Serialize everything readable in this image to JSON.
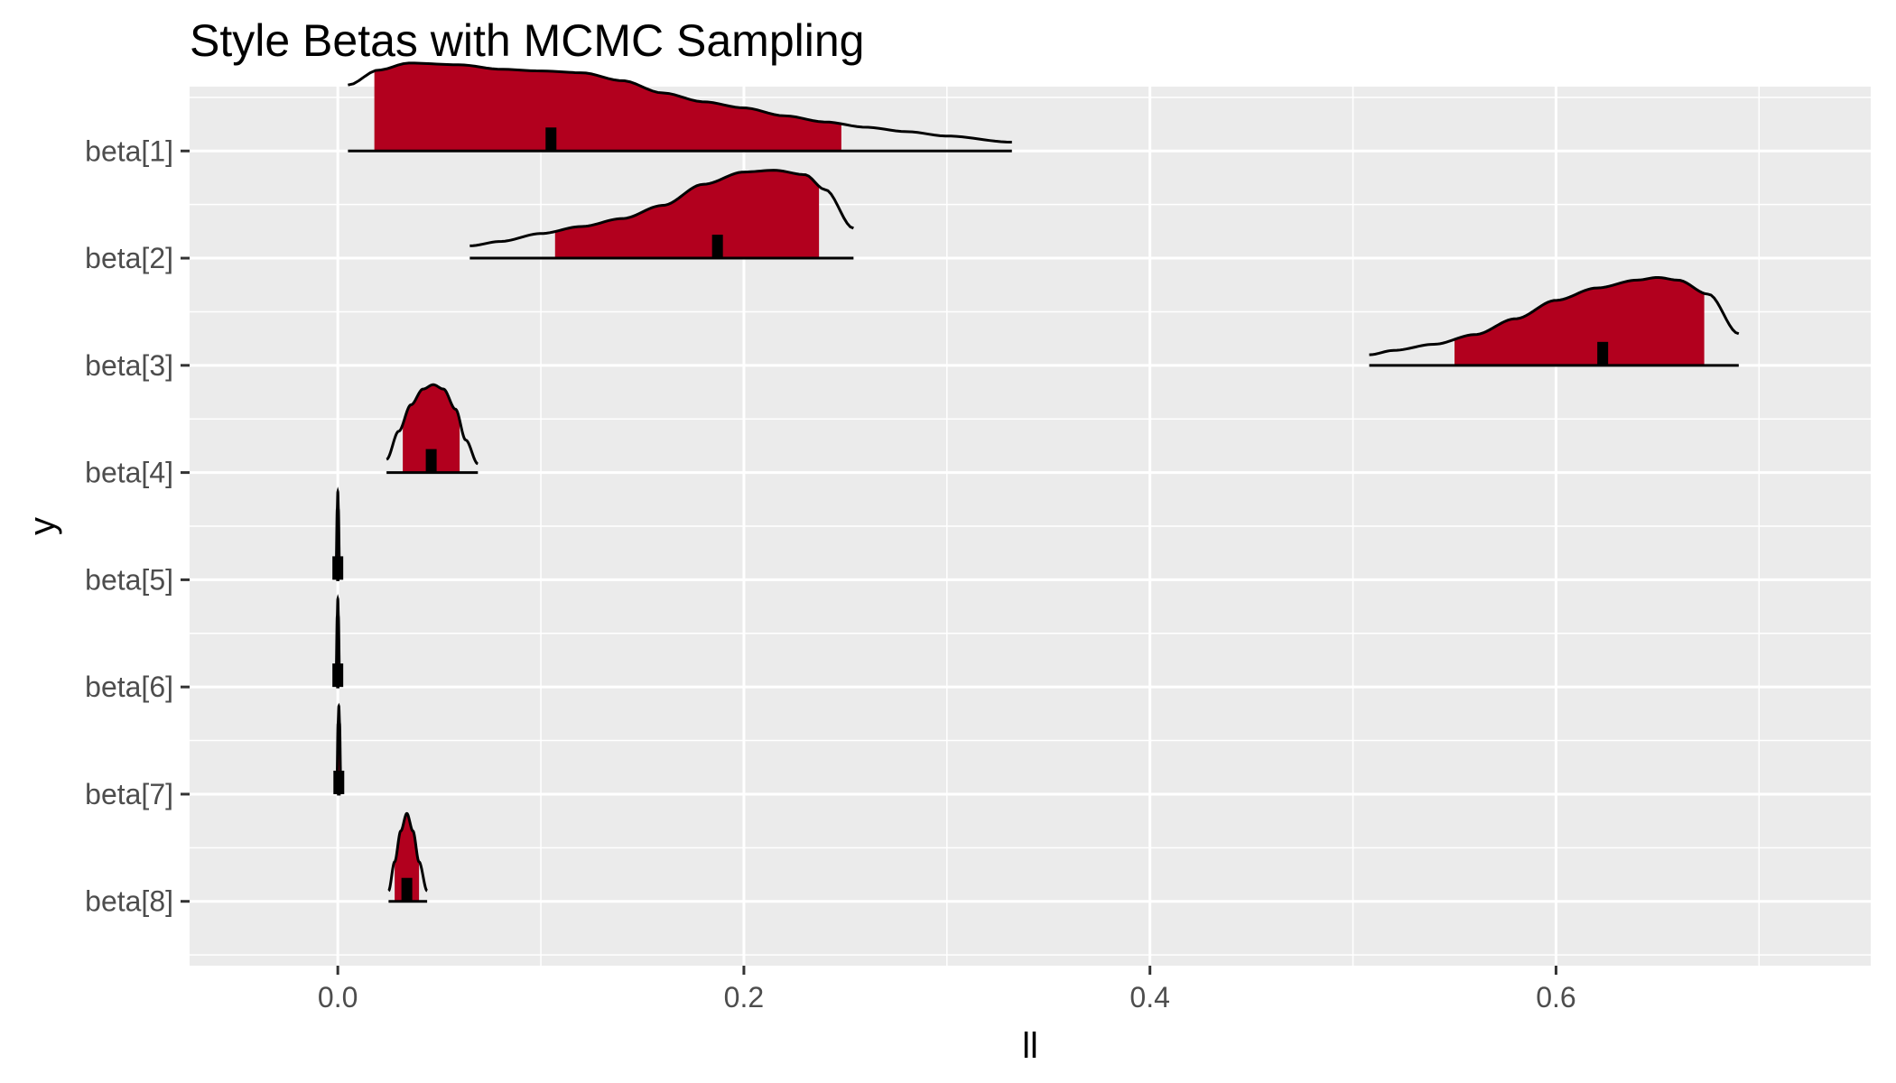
{
  "chart_data": {
    "type": "ridgeline",
    "title": "Style Betas with MCMC Sampling",
    "xlabel": "ll",
    "ylabel": "y",
    "xlim": [
      -0.073,
      0.755
    ],
    "x_ticks": [
      0.0,
      0.2,
      0.4,
      0.6
    ],
    "x_tick_labels": [
      "0.0",
      "0.2",
      "0.4",
      "0.6"
    ],
    "grid": true,
    "colors": {
      "panel": "#ebebeb",
      "grid": "#ffffff",
      "fill": "#b2001e",
      "outline": "#000000",
      "tick_text": "#4d4d4d"
    },
    "categories": [
      "beta[1]",
      "beta[2]",
      "beta[3]",
      "beta[4]",
      "beta[5]",
      "beta[6]",
      "beta[7]",
      "beta[8]"
    ],
    "series": [
      {
        "name": "beta[1]",
        "median": 0.105,
        "inner": [
          0.018,
          0.248
        ],
        "outer": [
          0.005,
          0.332
        ],
        "density": [
          [
            0.005,
            0.75
          ],
          [
            0.02,
            0.92
          ],
          [
            0.035,
            1.0
          ],
          [
            0.06,
            0.98
          ],
          [
            0.08,
            0.93
          ],
          [
            0.1,
            0.91
          ],
          [
            0.12,
            0.89
          ],
          [
            0.14,
            0.8
          ],
          [
            0.16,
            0.66
          ],
          [
            0.18,
            0.56
          ],
          [
            0.2,
            0.49
          ],
          [
            0.22,
            0.4
          ],
          [
            0.24,
            0.33
          ],
          [
            0.26,
            0.27
          ],
          [
            0.28,
            0.22
          ],
          [
            0.3,
            0.17
          ],
          [
            0.332,
            0.1
          ]
        ]
      },
      {
        "name": "beta[2]",
        "median": 0.187,
        "inner": [
          0.107,
          0.237
        ],
        "outer": [
          0.065,
          0.254
        ],
        "density": [
          [
            0.065,
            0.14
          ],
          [
            0.08,
            0.19
          ],
          [
            0.1,
            0.28
          ],
          [
            0.12,
            0.36
          ],
          [
            0.14,
            0.45
          ],
          [
            0.16,
            0.6
          ],
          [
            0.18,
            0.84
          ],
          [
            0.2,
            0.98
          ],
          [
            0.215,
            1.0
          ],
          [
            0.23,
            0.95
          ],
          [
            0.24,
            0.78
          ],
          [
            0.254,
            0.34
          ]
        ]
      },
      {
        "name": "beta[3]",
        "median": 0.623,
        "inner": [
          0.55,
          0.673
        ],
        "outer": [
          0.508,
          0.69
        ],
        "density": [
          [
            0.508,
            0.12
          ],
          [
            0.52,
            0.17
          ],
          [
            0.54,
            0.24
          ],
          [
            0.56,
            0.35
          ],
          [
            0.58,
            0.53
          ],
          [
            0.6,
            0.74
          ],
          [
            0.62,
            0.88
          ],
          [
            0.64,
            0.97
          ],
          [
            0.65,
            1.0
          ],
          [
            0.66,
            0.97
          ],
          [
            0.675,
            0.81
          ],
          [
            0.69,
            0.36
          ]
        ]
      },
      {
        "name": "beta[4]",
        "median": 0.046,
        "inner": [
          0.032,
          0.06
        ],
        "outer": [
          0.024,
          0.069
        ],
        "density": [
          [
            0.024,
            0.15
          ],
          [
            0.03,
            0.47
          ],
          [
            0.036,
            0.77
          ],
          [
            0.042,
            0.95
          ],
          [
            0.047,
            1.0
          ],
          [
            0.052,
            0.95
          ],
          [
            0.058,
            0.72
          ],
          [
            0.063,
            0.37
          ],
          [
            0.069,
            0.1
          ]
        ]
      },
      {
        "name": "beta[5]",
        "median": 0.0,
        "inner": [
          -0.0003,
          0.0003
        ],
        "outer": [
          -0.0008,
          0.0008
        ],
        "density": [
          [
            -0.0008,
            0.2
          ],
          [
            -0.0003,
            0.8
          ],
          [
            0.0,
            1.0
          ],
          [
            0.0003,
            0.8
          ],
          [
            0.0008,
            0.2
          ]
        ]
      },
      {
        "name": "beta[6]",
        "median": 0.0,
        "inner": [
          -0.0003,
          0.0003
        ],
        "outer": [
          -0.0008,
          0.0008
        ],
        "density": [
          [
            -0.0008,
            0.2
          ],
          [
            -0.0003,
            0.8
          ],
          [
            0.0,
            1.0
          ],
          [
            0.0003,
            0.8
          ],
          [
            0.0008,
            0.2
          ]
        ]
      },
      {
        "name": "beta[7]",
        "median": 0.0005,
        "inner": [
          0.0001,
          0.0009
        ],
        "outer": [
          -0.0004,
          0.0014
        ],
        "density": [
          [
            -0.0004,
            0.2
          ],
          [
            0.0001,
            0.8
          ],
          [
            0.0005,
            1.0
          ],
          [
            0.0009,
            0.8
          ],
          [
            0.0014,
            0.2
          ]
        ]
      },
      {
        "name": "beta[8]",
        "median": 0.034,
        "inner": [
          0.028,
          0.04
        ],
        "outer": [
          0.025,
          0.044
        ],
        "density": [
          [
            0.025,
            0.12
          ],
          [
            0.028,
            0.45
          ],
          [
            0.031,
            0.8
          ],
          [
            0.034,
            1.0
          ],
          [
            0.037,
            0.8
          ],
          [
            0.04,
            0.45
          ],
          [
            0.044,
            0.12
          ]
        ]
      }
    ],
    "ridge_scale": 0.82
  }
}
